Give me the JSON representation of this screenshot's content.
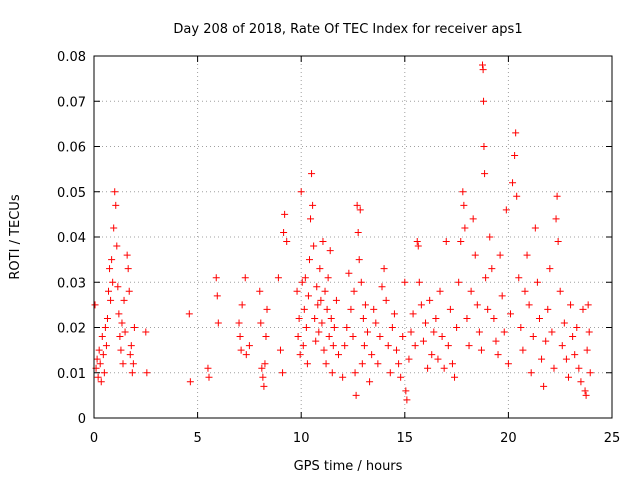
{
  "chart_data": {
    "type": "scatter",
    "title": "Day 208 of 2018, Rate Of TEC Index for receiver aps1",
    "xlabel": "GPS time / hours",
    "ylabel": "ROTI / TECUs",
    "xlim": [
      0,
      25
    ],
    "ylim": [
      0,
      0.08
    ],
    "x_ticks": [
      "0",
      "5",
      "10",
      "15",
      "20",
      "25"
    ],
    "y_ticks": [
      "0",
      "0.01",
      "0.02",
      "0.03",
      "0.04",
      "0.05",
      "0.06",
      "0.07",
      "0.08"
    ],
    "grid": true,
    "marker": "+",
    "color": "#ff0000",
    "series": [
      {
        "points": [
          [
            0.05,
            0.025
          ],
          [
            0.1,
            0.011
          ],
          [
            0.15,
            0.013
          ],
          [
            0.2,
            0.009
          ],
          [
            0.25,
            0.015
          ],
          [
            0.3,
            0.012
          ],
          [
            0.35,
            0.008
          ],
          [
            0.4,
            0.018
          ],
          [
            0.45,
            0.014
          ],
          [
            0.5,
            0.01
          ],
          [
            0.55,
            0.02
          ],
          [
            0.6,
            0.016
          ],
          [
            0.65,
            0.022
          ],
          [
            0.7,
            0.028
          ],
          [
            0.75,
            0.033
          ],
          [
            0.8,
            0.026
          ],
          [
            0.85,
            0.035
          ],
          [
            0.9,
            0.03
          ],
          [
            0.95,
            0.042
          ],
          [
            1.0,
            0.05
          ],
          [
            1.05,
            0.047
          ],
          [
            1.1,
            0.038
          ],
          [
            1.15,
            0.029
          ],
          [
            1.2,
            0.023
          ],
          [
            1.25,
            0.018
          ],
          [
            1.3,
            0.015
          ],
          [
            1.35,
            0.021
          ],
          [
            1.4,
            0.012
          ],
          [
            1.45,
            0.026
          ],
          [
            1.5,
            0.019
          ],
          [
            1.6,
            0.036
          ],
          [
            1.65,
            0.033
          ],
          [
            1.7,
            0.028
          ],
          [
            1.75,
            0.014
          ],
          [
            1.8,
            0.016
          ],
          [
            1.85,
            0.01
          ],
          [
            1.9,
            0.012
          ],
          [
            1.95,
            0.02
          ],
          [
            2.5,
            0.019
          ],
          [
            2.55,
            0.01
          ],
          [
            4.6,
            0.023
          ],
          [
            4.65,
            0.008
          ],
          [
            5.5,
            0.011
          ],
          [
            5.55,
            0.009
          ],
          [
            5.9,
            0.031
          ],
          [
            5.95,
            0.027
          ],
          [
            6.0,
            0.021
          ],
          [
            7.0,
            0.021
          ],
          [
            7.05,
            0.018
          ],
          [
            7.1,
            0.015
          ],
          [
            7.15,
            0.025
          ],
          [
            7.3,
            0.031
          ],
          [
            7.35,
            0.014
          ],
          [
            7.5,
            0.016
          ],
          [
            8.0,
            0.028
          ],
          [
            8.05,
            0.021
          ],
          [
            8.1,
            0.011
          ],
          [
            8.15,
            0.009
          ],
          [
            8.2,
            0.007
          ],
          [
            8.25,
            0.012
          ],
          [
            8.3,
            0.018
          ],
          [
            8.35,
            0.024
          ],
          [
            8.9,
            0.031
          ],
          [
            9.0,
            0.015
          ],
          [
            9.1,
            0.01
          ],
          [
            9.15,
            0.041
          ],
          [
            9.2,
            0.045
          ],
          [
            9.3,
            0.039
          ],
          [
            9.8,
            0.028
          ],
          [
            9.85,
            0.018
          ],
          [
            9.9,
            0.022
          ],
          [
            9.95,
            0.014
          ],
          [
            10.0,
            0.05
          ],
          [
            10.05,
            0.03
          ],
          [
            10.1,
            0.016
          ],
          [
            10.15,
            0.024
          ],
          [
            10.2,
            0.031
          ],
          [
            10.25,
            0.02
          ],
          [
            10.3,
            0.012
          ],
          [
            10.35,
            0.027
          ],
          [
            10.4,
            0.035
          ],
          [
            10.45,
            0.044
          ],
          [
            10.5,
            0.054
          ],
          [
            10.55,
            0.047
          ],
          [
            10.6,
            0.038
          ],
          [
            10.65,
            0.022
          ],
          [
            10.7,
            0.017
          ],
          [
            10.75,
            0.029
          ],
          [
            10.8,
            0.025
          ],
          [
            10.85,
            0.019
          ],
          [
            10.9,
            0.033
          ],
          [
            10.95,
            0.026
          ],
          [
            11.0,
            0.021
          ],
          [
            11.05,
            0.039
          ],
          [
            11.1,
            0.015
          ],
          [
            11.15,
            0.028
          ],
          [
            11.2,
            0.012
          ],
          [
            11.25,
            0.024
          ],
          [
            11.3,
            0.031
          ],
          [
            11.35,
            0.018
          ],
          [
            11.4,
            0.037
          ],
          [
            11.45,
            0.022
          ],
          [
            11.5,
            0.01
          ],
          [
            11.55,
            0.016
          ],
          [
            11.6,
            0.02
          ],
          [
            11.7,
            0.026
          ],
          [
            11.8,
            0.014
          ],
          [
            12.0,
            0.009
          ],
          [
            12.1,
            0.016
          ],
          [
            12.2,
            0.02
          ],
          [
            12.3,
            0.032
          ],
          [
            12.4,
            0.024
          ],
          [
            12.5,
            0.018
          ],
          [
            12.55,
            0.028
          ],
          [
            12.6,
            0.01
          ],
          [
            12.65,
            0.005
          ],
          [
            12.7,
            0.047
          ],
          [
            12.75,
            0.041
          ],
          [
            12.8,
            0.035
          ],
          [
            12.85,
            0.046
          ],
          [
            12.9,
            0.03
          ],
          [
            12.95,
            0.012
          ],
          [
            13.0,
            0.022
          ],
          [
            13.05,
            0.016
          ],
          [
            13.1,
            0.025
          ],
          [
            13.2,
            0.019
          ],
          [
            13.3,
            0.008
          ],
          [
            13.4,
            0.014
          ],
          [
            13.5,
            0.024
          ],
          [
            13.6,
            0.021
          ],
          [
            13.7,
            0.012
          ],
          [
            13.8,
            0.018
          ],
          [
            13.9,
            0.029
          ],
          [
            14.0,
            0.033
          ],
          [
            14.1,
            0.026
          ],
          [
            14.2,
            0.016
          ],
          [
            14.3,
            0.01
          ],
          [
            14.4,
            0.02
          ],
          [
            14.5,
            0.023
          ],
          [
            14.6,
            0.015
          ],
          [
            14.7,
            0.012
          ],
          [
            14.8,
            0.009
          ],
          [
            14.9,
            0.018
          ],
          [
            15.0,
            0.03
          ],
          [
            15.05,
            0.006
          ],
          [
            15.1,
            0.004
          ],
          [
            15.2,
            0.013
          ],
          [
            15.3,
            0.019
          ],
          [
            15.4,
            0.023
          ],
          [
            15.5,
            0.016
          ],
          [
            15.6,
            0.039
          ],
          [
            15.65,
            0.038
          ],
          [
            15.7,
            0.03
          ],
          [
            15.8,
            0.025
          ],
          [
            15.9,
            0.017
          ],
          [
            16.0,
            0.021
          ],
          [
            16.1,
            0.011
          ],
          [
            16.2,
            0.026
          ],
          [
            16.3,
            0.014
          ],
          [
            16.4,
            0.019
          ],
          [
            16.5,
            0.022
          ],
          [
            16.6,
            0.013
          ],
          [
            16.7,
            0.028
          ],
          [
            16.8,
            0.018
          ],
          [
            16.9,
            0.011
          ],
          [
            17.0,
            0.039
          ],
          [
            17.1,
            0.016
          ],
          [
            17.2,
            0.024
          ],
          [
            17.3,
            0.012
          ],
          [
            17.4,
            0.009
          ],
          [
            17.5,
            0.02
          ],
          [
            17.6,
            0.03
          ],
          [
            17.7,
            0.039
          ],
          [
            17.8,
            0.05
          ],
          [
            17.85,
            0.047
          ],
          [
            17.9,
            0.042
          ],
          [
            18.0,
            0.022
          ],
          [
            18.1,
            0.016
          ],
          [
            18.2,
            0.028
          ],
          [
            18.3,
            0.044
          ],
          [
            18.4,
            0.036
          ],
          [
            18.5,
            0.025
          ],
          [
            18.6,
            0.019
          ],
          [
            18.7,
            0.015
          ],
          [
            18.75,
            0.078
          ],
          [
            18.78,
            0.077
          ],
          [
            18.8,
            0.07
          ],
          [
            18.82,
            0.06
          ],
          [
            18.85,
            0.054
          ],
          [
            18.9,
            0.031
          ],
          [
            19.0,
            0.024
          ],
          [
            19.1,
            0.04
          ],
          [
            19.2,
            0.033
          ],
          [
            19.3,
            0.022
          ],
          [
            19.4,
            0.017
          ],
          [
            19.5,
            0.014
          ],
          [
            19.6,
            0.036
          ],
          [
            19.7,
            0.027
          ],
          [
            19.8,
            0.019
          ],
          [
            19.9,
            0.046
          ],
          [
            20.0,
            0.012
          ],
          [
            20.1,
            0.023
          ],
          [
            20.2,
            0.052
          ],
          [
            20.3,
            0.058
          ],
          [
            20.35,
            0.063
          ],
          [
            20.4,
            0.049
          ],
          [
            20.5,
            0.031
          ],
          [
            20.6,
            0.02
          ],
          [
            20.7,
            0.015
          ],
          [
            20.8,
            0.028
          ],
          [
            20.9,
            0.036
          ],
          [
            21.0,
            0.025
          ],
          [
            21.1,
            0.01
          ],
          [
            21.2,
            0.018
          ],
          [
            21.3,
            0.042
          ],
          [
            21.4,
            0.03
          ],
          [
            21.5,
            0.022
          ],
          [
            21.6,
            0.013
          ],
          [
            21.7,
            0.007
          ],
          [
            21.8,
            0.017
          ],
          [
            21.9,
            0.024
          ],
          [
            22.0,
            0.033
          ],
          [
            22.1,
            0.019
          ],
          [
            22.2,
            0.011
          ],
          [
            22.3,
            0.044
          ],
          [
            22.35,
            0.049
          ],
          [
            22.4,
            0.039
          ],
          [
            22.5,
            0.028
          ],
          [
            22.6,
            0.016
          ],
          [
            22.7,
            0.021
          ],
          [
            22.8,
            0.013
          ],
          [
            22.9,
            0.009
          ],
          [
            23.0,
            0.025
          ],
          [
            23.1,
            0.018
          ],
          [
            23.2,
            0.014
          ],
          [
            23.3,
            0.02
          ],
          [
            23.4,
            0.011
          ],
          [
            23.5,
            0.008
          ],
          [
            23.6,
            0.024
          ],
          [
            23.7,
            0.006
          ],
          [
            23.75,
            0.005
          ],
          [
            23.8,
            0.015
          ],
          [
            23.85,
            0.025
          ],
          [
            23.9,
            0.019
          ],
          [
            23.95,
            0.01
          ]
        ]
      }
    ]
  }
}
